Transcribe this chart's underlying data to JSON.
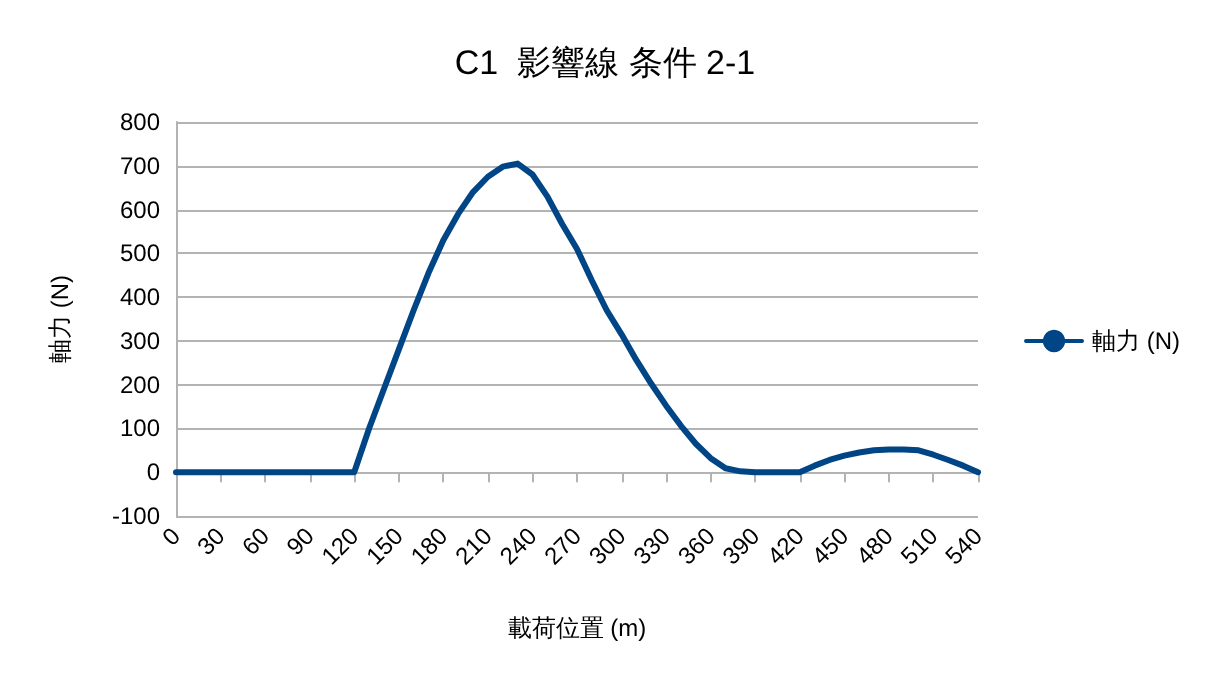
{
  "chart_data": {
    "type": "line",
    "title": "C1  影響線 条件 2-1",
    "xlabel": "載荷位置 (m)",
    "ylabel": "軸力 (N)",
    "x": [
      0,
      10,
      20,
      30,
      40,
      50,
      60,
      70,
      80,
      90,
      100,
      110,
      120,
      130,
      140,
      150,
      160,
      170,
      180,
      190,
      200,
      210,
      220,
      230,
      240,
      250,
      260,
      270,
      280,
      290,
      300,
      310,
      320,
      330,
      340,
      350,
      360,
      370,
      380,
      390,
      400,
      410,
      420,
      430,
      440,
      450,
      460,
      470,
      480,
      490,
      500,
      510,
      520,
      530,
      540
    ],
    "series": [
      {
        "name": "軸力 (N)",
        "color": "#004586",
        "values": [
          0,
          0,
          0,
          0,
          0,
          0,
          0,
          0,
          0,
          0,
          0,
          0,
          0,
          100,
          190,
          280,
          370,
          455,
          530,
          590,
          640,
          675,
          698,
          705,
          680,
          630,
          567,
          510,
          438,
          370,
          315,
          256,
          202,
          152,
          106,
          65,
          32,
          9,
          2,
          0,
          0,
          0,
          0,
          15,
          28,
          38,
          45,
          50,
          52,
          52,
          50,
          40,
          28,
          15,
          0
        ]
      }
    ],
    "xlim": [
      0,
      540
    ],
    "xticks": [
      0,
      30,
      60,
      90,
      120,
      150,
      180,
      210,
      240,
      270,
      300,
      330,
      360,
      390,
      420,
      450,
      480,
      510,
      540
    ],
    "ylim": [
      -100,
      800
    ],
    "yticks": [
      -100,
      0,
      100,
      200,
      300,
      400,
      500,
      600,
      700,
      800
    ],
    "grid": "y",
    "legend": "right",
    "marker": "none",
    "line_style": "solid"
  }
}
